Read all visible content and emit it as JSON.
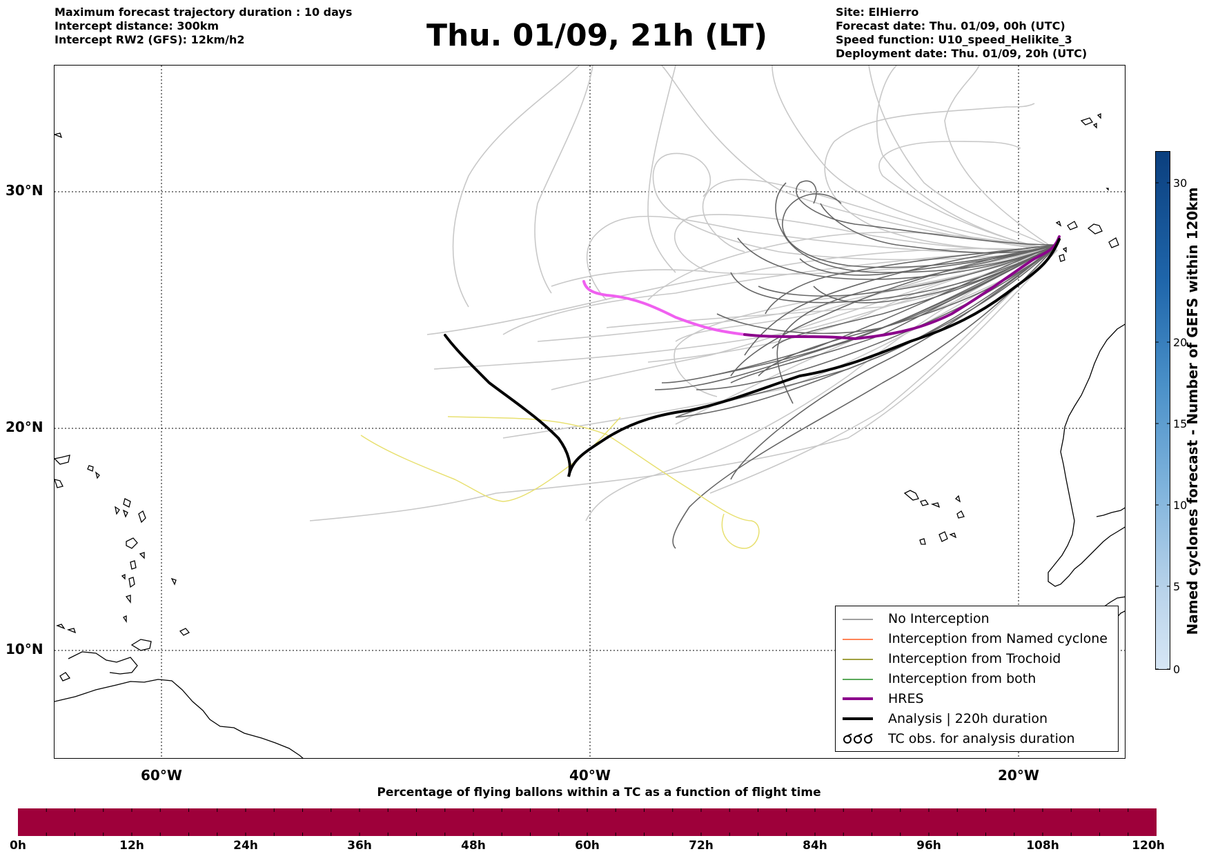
{
  "header_left": [
    "Maximum forecast trajectory duration : 10 days",
    "Intercept distance: 300km",
    "Intercept RW2 (GFS):  12km/h2"
  ],
  "title": "Thu. 01/09, 21h (LT)",
  "header_right": [
    "Site: ElHierro",
    "Forecast date: Thu. 01/09, 00h (UTC)",
    "Speed function: U10_speed_Helikite_3",
    "Deployment date: Thu. 01/09, 20h (UTC)"
  ],
  "map": {
    "lat_labels": [
      "30°N",
      "20°N",
      "10°N"
    ],
    "lon_labels": [
      "60°W",
      "40°W",
      "20°W"
    ],
    "colors": {
      "no_interception": "#666666",
      "ensemble_light": "#c8c8c8",
      "named_cyclone": "#ff5a1f",
      "trochoid": "#808000",
      "both": "#228b22",
      "hres": "#8b008b",
      "hres_early": "#f060f0",
      "analysis": "#000000",
      "tc_obs": "#e8e070",
      "coast": "#000000"
    }
  },
  "legend": {
    "items": [
      {
        "label": "No Interception",
        "kind": "line",
        "color": "#808080",
        "width": 1.5
      },
      {
        "label": "Interception from Named cyclone",
        "kind": "line",
        "color": "#ff5a1f",
        "width": 1.5
      },
      {
        "label": "Interception from Trochoid",
        "kind": "line",
        "color": "#808000",
        "width": 1.5
      },
      {
        "label": "Interception from both",
        "kind": "line",
        "color": "#228b22",
        "width": 1.5
      },
      {
        "label": "HRES",
        "kind": "line",
        "color": "#8b008b",
        "width": 4
      },
      {
        "label": "Analysis | 220h duration",
        "kind": "line",
        "color": "#000000",
        "width": 4
      },
      {
        "label": "TC obs. for analysis duration",
        "kind": "symbol",
        "color": "#000000",
        "width": 2
      }
    ]
  },
  "colorbar_vertical": {
    "title": "Named cyclones forecast - Number of GEFS within 120km",
    "ticks": [
      "0",
      "5",
      "10",
      "15",
      "20",
      "30"
    ],
    "colors": [
      "#d6e6f5",
      "#0b3f7e"
    ]
  },
  "colorbar_horizontal": {
    "title": "Percentage of flying ballons within a TC as a function of flight time",
    "ticks": [
      "0h",
      "12h",
      "24h",
      "36h",
      "48h",
      "60h",
      "72h",
      "84h",
      "96h",
      "108h",
      "120h"
    ],
    "color": "#9e003a"
  }
}
